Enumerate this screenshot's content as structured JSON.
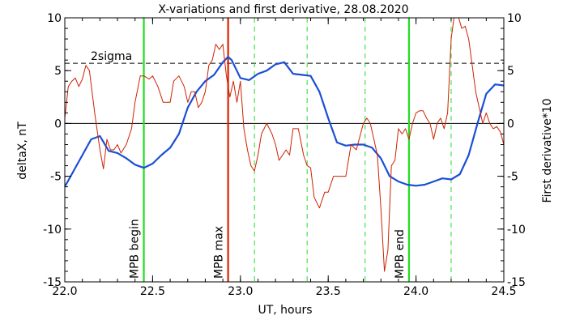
{
  "chart_data": {
    "type": "line",
    "title": "X-variations and first derivative, 28.08.2020",
    "xlabel": "UT, hours",
    "ylabel_left": "deltaX, nT",
    "ylabel_right": "First derivative*10",
    "xlim": [
      22.0,
      24.5
    ],
    "ylim": [
      -15,
      10
    ],
    "y2lim": [
      -15,
      10
    ],
    "x_ticks": [
      "22.0",
      "22.5",
      "23.0",
      "23.5",
      "24.0",
      "24.5"
    ],
    "y_ticks": [
      "10",
      "5",
      "0",
      "-5",
      "-10",
      "-15"
    ],
    "y2_ticks": [
      "10",
      "5",
      "0",
      "-5",
      "-10",
      "-15"
    ],
    "grid": false,
    "colors": {
      "deltaX": "#1a4fd6",
      "derivative": "#cc2200",
      "mpb": "#22dd22",
      "mpb_max": "#dd2200",
      "axis": "#000000"
    },
    "horizontal_lines": [
      {
        "y": 0,
        "style": "solid",
        "color": "#000000",
        "label": ""
      },
      {
        "y": 5.7,
        "style": "dashed",
        "color": "#000000",
        "label": "2sigma"
      }
    ],
    "vertical_markers": [
      {
        "x": 22.45,
        "label": "MPB begin",
        "style": "solid",
        "color": "#22dd22"
      },
      {
        "x": 22.93,
        "label": "MPB max",
        "style": "solid",
        "color": "#dd2200"
      },
      {
        "x": 23.08,
        "label": "",
        "style": "dashed",
        "color": "#22dd22"
      },
      {
        "x": 23.38,
        "label": "",
        "style": "dashed",
        "color": "#22dd22"
      },
      {
        "x": 23.71,
        "label": "",
        "style": "dashed",
        "color": "#22dd22"
      },
      {
        "x": 23.96,
        "label": "MPB end",
        "style": "solid",
        "color": "#22dd22"
      },
      {
        "x": 24.2,
        "label": "",
        "style": "dashed",
        "color": "#22dd22"
      }
    ],
    "series": [
      {
        "name": "deltaX, nT",
        "axis": "left",
        "x": [
          22.0,
          22.05,
          22.1,
          22.15,
          22.2,
          22.25,
          22.3,
          22.35,
          22.4,
          22.45,
          22.5,
          22.55,
          22.6,
          22.65,
          22.7,
          22.75,
          22.8,
          22.85,
          22.9,
          22.93,
          22.95,
          23.0,
          23.05,
          23.1,
          23.15,
          23.2,
          23.25,
          23.3,
          23.35,
          23.4,
          23.45,
          23.5,
          23.55,
          23.6,
          23.65,
          23.7,
          23.75,
          23.8,
          23.85,
          23.9,
          23.95,
          24.0,
          24.05,
          24.1,
          24.15,
          24.2,
          24.25,
          24.3,
          24.35,
          24.4,
          24.45,
          24.5
        ],
        "values": [
          -6.0,
          -4.5,
          -3.0,
          -1.5,
          -1.2,
          -2.6,
          -2.8,
          -3.3,
          -3.9,
          -4.2,
          -3.8,
          -3.0,
          -2.3,
          -1.0,
          1.5,
          3.0,
          4.0,
          4.6,
          5.8,
          6.3,
          6.0,
          4.3,
          4.1,
          4.7,
          5.0,
          5.6,
          5.8,
          4.7,
          4.6,
          4.5,
          3.0,
          0.5,
          -1.8,
          -2.1,
          -2.0,
          -2.0,
          -2.3,
          -3.3,
          -5.0,
          -5.5,
          -5.8,
          -5.9,
          -5.8,
          -5.5,
          -5.2,
          -5.3,
          -4.8,
          -3.0,
          0.0,
          2.8,
          3.7,
          3.6
        ]
      },
      {
        "name": "First derivative*10",
        "axis": "right",
        "x": [
          22.0,
          22.02,
          22.04,
          22.06,
          22.08,
          22.1,
          22.12,
          22.14,
          22.17,
          22.2,
          22.22,
          22.24,
          22.26,
          22.28,
          22.3,
          22.32,
          22.35,
          22.38,
          22.4,
          22.43,
          22.45,
          22.48,
          22.5,
          22.53,
          22.56,
          22.6,
          22.62,
          22.65,
          22.68,
          22.7,
          22.72,
          22.74,
          22.76,
          22.78,
          22.8,
          22.82,
          22.84,
          22.86,
          22.88,
          22.9,
          22.92,
          22.94,
          22.96,
          22.98,
          23.0,
          23.02,
          23.04,
          23.06,
          23.08,
          23.1,
          23.12,
          23.15,
          23.18,
          23.2,
          23.22,
          23.24,
          23.26,
          23.28,
          23.3,
          23.33,
          23.36,
          23.38,
          23.4,
          23.42,
          23.45,
          23.48,
          23.5,
          23.53,
          23.56,
          23.6,
          23.63,
          23.66,
          23.7,
          23.72,
          23.74,
          23.76,
          23.78,
          23.8,
          23.82,
          23.84,
          23.86,
          23.88,
          23.9,
          23.92,
          23.94,
          23.96,
          23.98,
          24.0,
          24.02,
          24.04,
          24.06,
          24.08,
          24.1,
          24.12,
          24.14,
          24.16,
          24.18,
          24.2,
          24.22,
          24.24,
          24.26,
          24.28,
          24.3,
          24.32,
          24.34,
          24.36,
          24.38,
          24.4,
          24.42,
          24.44,
          24.46,
          24.48,
          24.5
        ],
        "values": [
          0.5,
          3.5,
          4.0,
          4.3,
          3.5,
          4.2,
          5.5,
          5.0,
          1.0,
          -2.5,
          -4.3,
          -1.5,
          -2.5,
          -2.5,
          -2.0,
          -2.8,
          -2.0,
          -0.5,
          2.0,
          4.5,
          4.5,
          4.2,
          4.5,
          3.5,
          2.0,
          2.0,
          4.0,
          4.5,
          3.5,
          2.0,
          3.0,
          3.0,
          1.5,
          2.0,
          3.0,
          5.5,
          6.0,
          7.5,
          7.0,
          7.5,
          4.5,
          2.5,
          4.0,
          2.0,
          4.0,
          -0.5,
          -2.5,
          -4.0,
          -4.5,
          -3.0,
          -1.0,
          0.0,
          -1.0,
          -2.0,
          -3.5,
          -3.0,
          -2.5,
          -3.0,
          -0.5,
          -0.5,
          -3.0,
          -4.0,
          -4.2,
          -7.0,
          -8.0,
          -6.5,
          -6.5,
          -5.0,
          -5.0,
          -5.0,
          -2.0,
          -2.5,
          0.0,
          0.5,
          0.0,
          -1.5,
          -3.0,
          -8.0,
          -14.0,
          -12.0,
          -4.0,
          -3.5,
          -0.5,
          -1.0,
          -0.5,
          -1.5,
          0.0,
          1.0,
          1.2,
          1.2,
          0.5,
          0.0,
          -1.5,
          0.0,
          0.5,
          -0.5,
          1.0,
          8.0,
          10.5,
          10.2,
          9.0,
          9.2,
          8.0,
          5.5,
          3.0,
          1.5,
          0.0,
          1.0,
          0.0,
          -0.5,
          -0.3,
          -0.8,
          -2.0
        ]
      }
    ]
  }
}
